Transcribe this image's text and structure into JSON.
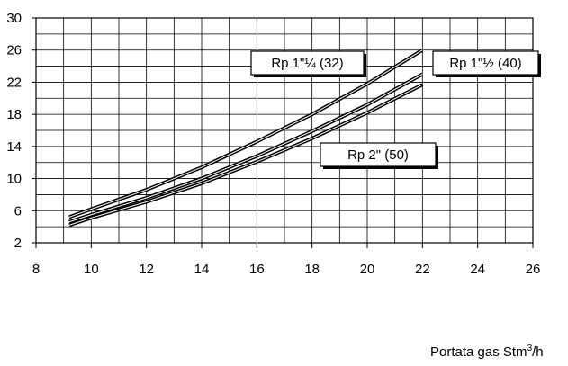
{
  "chart_data": {
    "type": "line",
    "xlim": [
      8,
      26
    ],
    "ylim": [
      2,
      30
    ],
    "x_ticks": [
      8,
      10,
      12,
      14,
      16,
      18,
      20,
      22,
      24,
      26
    ],
    "y_ticks": [
      2,
      6,
      10,
      14,
      18,
      22,
      26,
      30
    ],
    "grid": true,
    "xlabel": {
      "main": "Portata gas Stm",
      "sup": "3",
      "suffix": "/h"
    },
    "series": [
      {
        "name": "Rp 1\"¼ (32)",
        "x": [
          9.2,
          10,
          12,
          14,
          16,
          18,
          20,
          22
        ],
        "values": [
          5.2,
          6.2,
          8.6,
          11.4,
          14.6,
          18.0,
          21.8,
          26.0
        ]
      },
      {
        "name": "Rp 1\"½ (40)",
        "x": [
          9.2,
          10,
          12,
          14,
          16,
          18,
          20,
          22
        ],
        "values": [
          4.6,
          5.5,
          7.6,
          10.0,
          12.8,
          15.9,
          19.2,
          23.0
        ]
      },
      {
        "name": "Rp 2\" (50)",
        "x": [
          9.2,
          10,
          12,
          14,
          16,
          18,
          20,
          22
        ],
        "values": [
          4.2,
          5.1,
          7.1,
          9.4,
          12.1,
          15.0,
          18.2,
          21.7
        ]
      }
    ],
    "annotations": [
      "Rp 1\"¼ (32)",
      "Rp 1\"½ (40)",
      "Rp 2\" (50)"
    ]
  }
}
